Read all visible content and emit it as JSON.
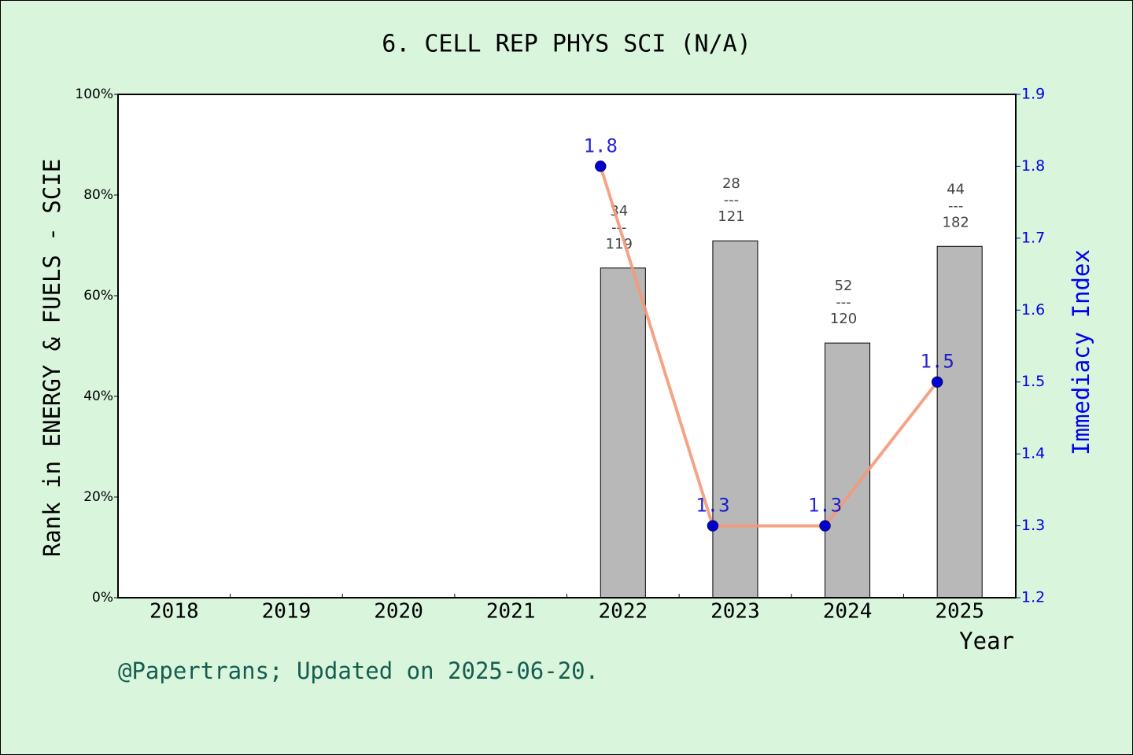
{
  "chart_data": {
    "type": "bar",
    "title": "6. CELL REP PHYS SCI (N/A)",
    "ylabel": "Rank in ENERGY & FUELS - SCIE",
    "y2label": "Immediacy Index",
    "xlabel": "Year",
    "footer": "@Papertrans; Updated on 2025-06-20.",
    "categories": [
      "2018",
      "2019",
      "2020",
      "2021",
      "2022",
      "2023",
      "2024",
      "2025"
    ],
    "series": [
      {
        "type": "bar",
        "color": "#b8b8b8",
        "values": [
          null,
          null,
          null,
          null,
          65.5,
          70.9,
          50.6,
          69.8
        ],
        "bar_labels": [
          null,
          null,
          null,
          null,
          [
            "34",
            "---",
            "119"
          ],
          [
            "28",
            "---",
            "121"
          ],
          [
            "52",
            "---",
            "120"
          ],
          [
            "44",
            "---",
            "182"
          ]
        ]
      },
      {
        "type": "line",
        "axis": "y2",
        "color": "#f4997a",
        "marker_color": "#0000cc",
        "values": [
          null,
          null,
          null,
          null,
          1.8,
          1.3,
          1.3,
          1.5
        ]
      }
    ],
    "ylim": [
      0,
      100
    ],
    "yticks": [
      {
        "value": 0,
        "label": "0%"
      },
      {
        "value": 20,
        "label": "20%"
      },
      {
        "value": 40,
        "label": "40%"
      },
      {
        "value": 60,
        "label": "60%"
      },
      {
        "value": 80,
        "label": "80%"
      },
      {
        "value": 100,
        "label": "100%"
      }
    ],
    "y2lim": [
      1.2,
      1.9
    ],
    "y2ticks": [
      1.2,
      1.3,
      1.4,
      1.5,
      1.6,
      1.7,
      1.8,
      1.9
    ],
    "grid": false
  }
}
